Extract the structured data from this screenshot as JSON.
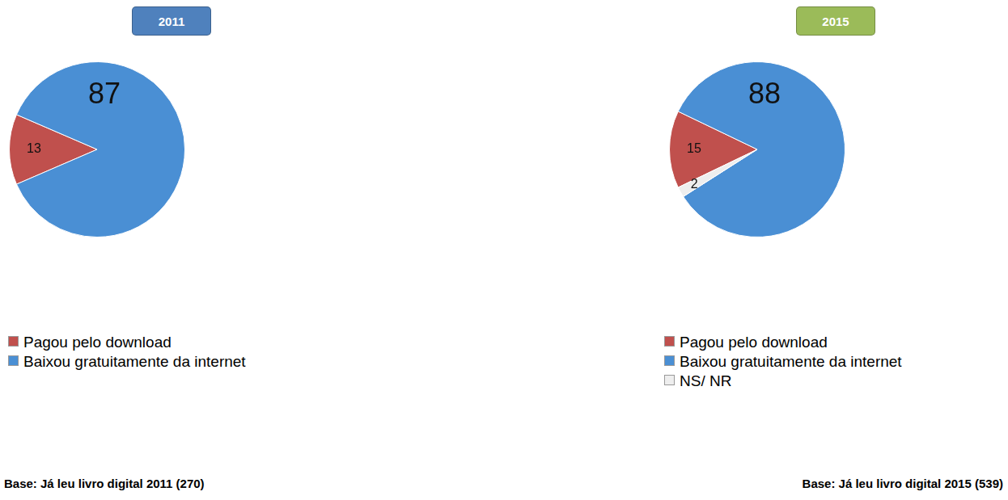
{
  "chart_data": [
    {
      "type": "pie",
      "title": "2011",
      "categories": [
        "Pagou pelo download",
        "Baixou gratuitamente da internet"
      ],
      "values": [
        13,
        87
      ],
      "colors": [
        "#c0504d",
        "#4a8fd4"
      ],
      "data_labels": true,
      "legend": "bottom",
      "annotations": [
        "Base: Já leu livro digital 2011 (270)"
      ]
    },
    {
      "type": "pie",
      "title": "2015",
      "categories": [
        "Pagou pelo download",
        "Baixou gratuitamente da internet",
        "NS/ NR"
      ],
      "values": [
        15,
        88,
        2
      ],
      "colors": [
        "#c0504d",
        "#4a8fd4",
        "#eeeeee"
      ],
      "data_labels": true,
      "legend": "bottom",
      "annotations": [
        "Base: Já leu livro digital 2015 (539)"
      ]
    }
  ]
}
